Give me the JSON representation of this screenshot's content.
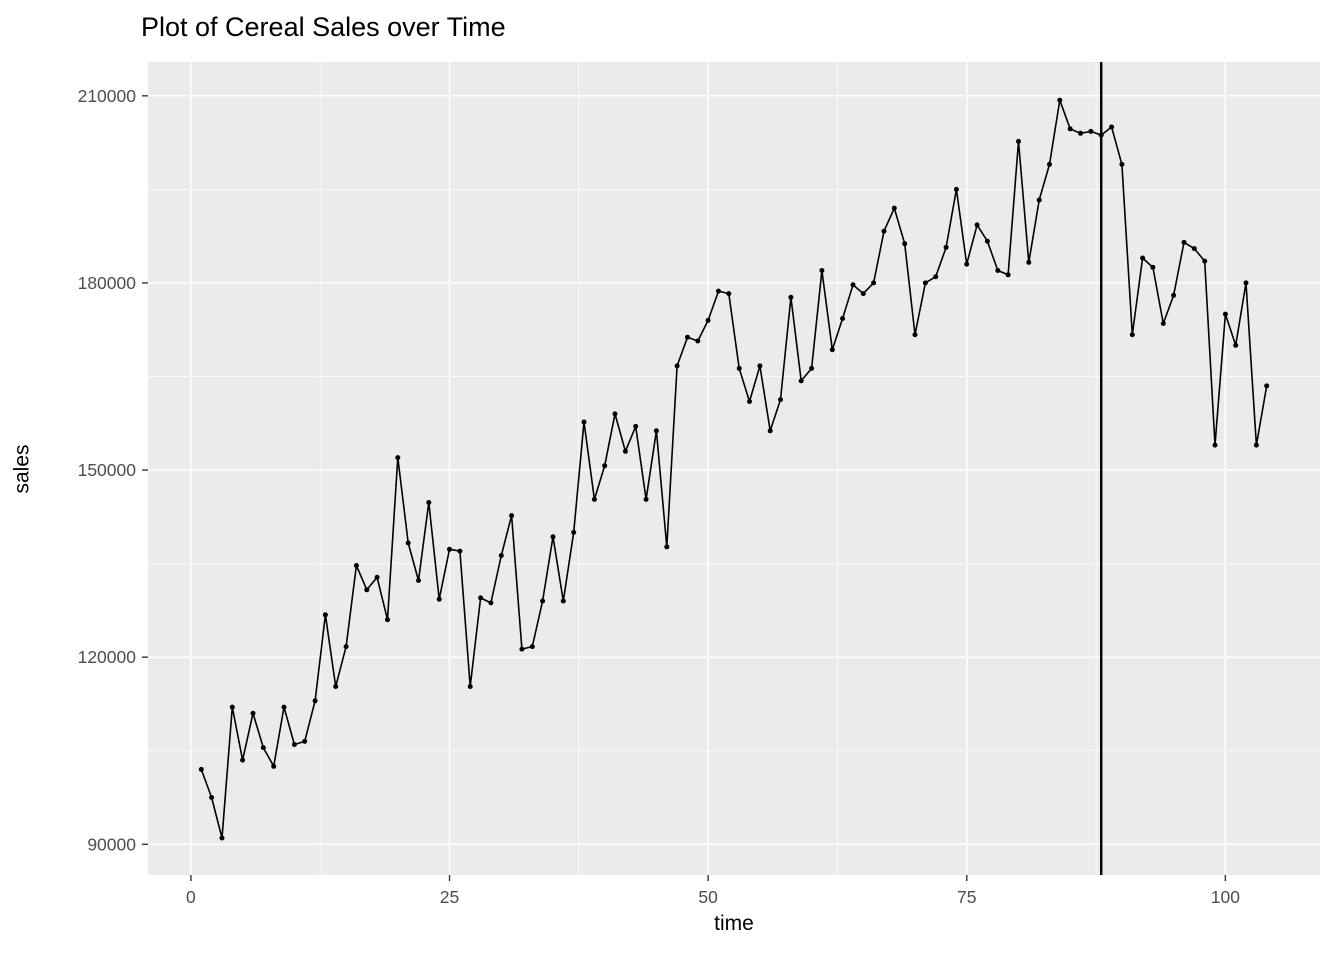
{
  "chart_data": {
    "type": "line",
    "title": "Plot of Cereal Sales over Time",
    "xlabel": "time",
    "ylabel": "sales",
    "x_start": 1,
    "values": [
      102000,
      97500,
      91000,
      112000,
      103500,
      111000,
      105500,
      102500,
      112000,
      106000,
      106500,
      113000,
      126800,
      115300,
      121700,
      134700,
      130800,
      132800,
      126000,
      152000,
      138300,
      132300,
      144800,
      129300,
      137300,
      137000,
      115300,
      129500,
      128700,
      136300,
      142700,
      121300,
      121700,
      129000,
      139300,
      129000,
      140000,
      157700,
      145300,
      150700,
      159000,
      153000,
      157000,
      145300,
      156300,
      137700,
      166700,
      171300,
      170700,
      174000,
      178700,
      178300,
      166300,
      161000,
      166700,
      156300,
      161300,
      177700,
      164300,
      166300,
      182000,
      169300,
      174300,
      179700,
      178300,
      180000,
      188300,
      192000,
      186300,
      171700,
      180000,
      181000,
      185700,
      195000,
      183000,
      189300,
      186700,
      182000,
      181300,
      202700,
      183300,
      193300,
      199000,
      209300,
      204700,
      204000,
      204300,
      203700,
      205000,
      199000,
      171700,
      184000,
      182500,
      173500,
      178000,
      186500,
      185500,
      183500,
      154000,
      175000,
      170000,
      180000,
      154000,
      163500
    ],
    "vline_x": 88,
    "x_ticks": [
      0,
      25,
      50,
      75,
      100
    ],
    "y_ticks": [
      90000,
      120000,
      150000,
      180000,
      210000
    ],
    "x_minor": [
      12.5,
      37.5,
      62.5,
      87.5
    ],
    "y_minor": [
      105000,
      135000,
      165000,
      195000
    ],
    "x_domain": [
      -4.15,
      109.15
    ],
    "y_domain": [
      85075,
      215425
    ],
    "grid": true,
    "legend": false,
    "colors": {
      "panel": "#EBEBEB",
      "grid": "#FFFFFF",
      "series": "#000000",
      "vline": "#000000",
      "tick_label": "#4D4D4D",
      "tick_mark": "#333333"
    }
  }
}
